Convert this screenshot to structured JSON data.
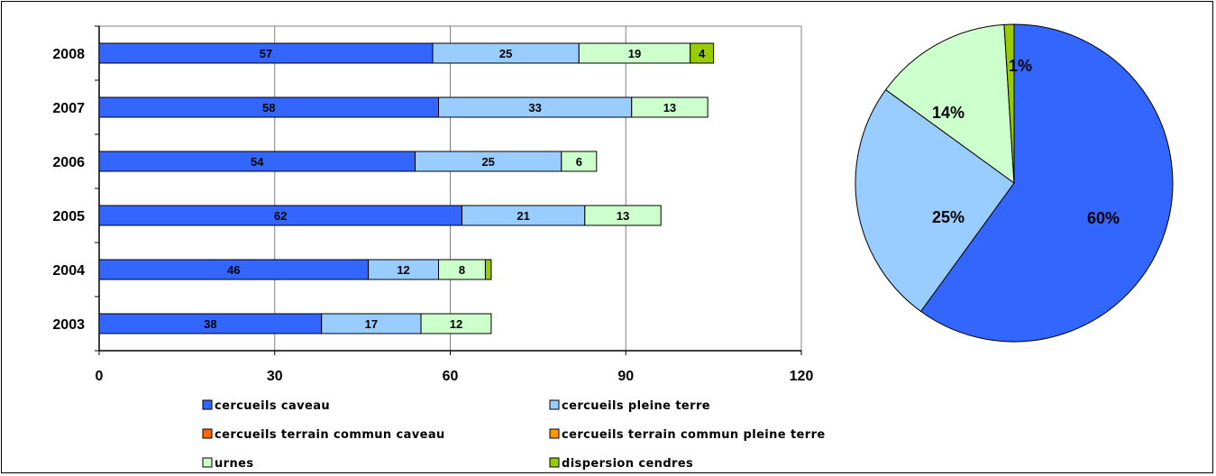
{
  "chart_data": [
    {
      "type": "bar",
      "orientation": "horizontal",
      "stacked": true,
      "categories": [
        "2008",
        "2007",
        "2006",
        "2005",
        "2004",
        "2003"
      ],
      "series": [
        {
          "name": "cercueils caveau",
          "color": "#3366ff",
          "values": [
            57,
            58,
            54,
            62,
            46,
            38
          ]
        },
        {
          "name": "cercueils pleine terre",
          "color": "#99ccff",
          "values": [
            25,
            33,
            25,
            21,
            12,
            17
          ]
        },
        {
          "name": "cercueils terrain commun caveau",
          "color": "#ff6600",
          "values": [
            0,
            0,
            0,
            0,
            0,
            0
          ]
        },
        {
          "name": "cercueils terrain commun pleine terre",
          "color": "#ff9900",
          "values": [
            0,
            0,
            0,
            0,
            0,
            0
          ]
        },
        {
          "name": "urnes",
          "color": "#ccffcc",
          "values": [
            19,
            13,
            6,
            13,
            8,
            12
          ]
        },
        {
          "name": "dispersion cendres",
          "color": "#99cc00",
          "values": [
            4,
            0,
            0,
            0,
            1,
            0
          ]
        }
      ],
      "data_labels": [
        [
          "57",
          "25",
          "",
          "",
          "19",
          "4"
        ],
        [
          "58",
          "33",
          "",
          "",
          "13",
          ""
        ],
        [
          "54",
          "25",
          "",
          "",
          "6",
          ""
        ],
        [
          "62",
          "21",
          "",
          "",
          "13",
          ""
        ],
        [
          "46",
          "12",
          "",
          "",
          "8",
          ""
        ],
        [
          "38",
          "17",
          "",
          "",
          "12",
          ""
        ]
      ],
      "xticks": [
        "0",
        "30",
        "60",
        "90",
        "120"
      ],
      "xlim": [
        0,
        120
      ],
      "grid": true,
      "legend": "bottom"
    },
    {
      "type": "pie",
      "slices": [
        {
          "label": "60%",
          "value": 60,
          "color": "#3366ff"
        },
        {
          "label": "25%",
          "value": 25,
          "color": "#99ccff"
        },
        {
          "label": "14%",
          "value": 14,
          "color": "#ccffcc"
        },
        {
          "label": "1%",
          "value": 1,
          "color": "#99cc00"
        }
      ]
    }
  ]
}
